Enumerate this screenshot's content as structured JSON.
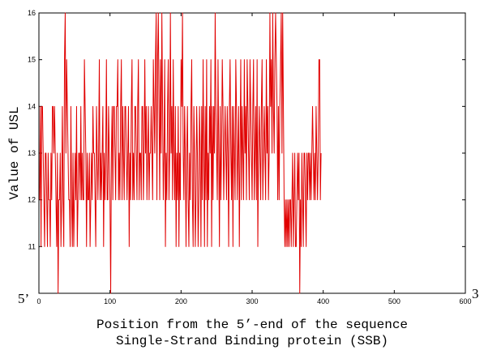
{
  "chart_data": {
    "type": "line",
    "title": "",
    "xlabel": "Position from the 5’-end of the sequence",
    "subtitle": "Single-Strand Binding protein (SSB)",
    "ylabel": "Value of USL",
    "left_end_label": "5’",
    "right_end_label": "3",
    "xlim": [
      0,
      600
    ],
    "ylim": [
      10,
      16
    ],
    "xticks": [
      0,
      100,
      200,
      300,
      400,
      500,
      600
    ],
    "yticks": [
      11,
      12,
      13,
      14,
      15,
      16
    ],
    "grid": false,
    "line_color": "#e00000",
    "series": [
      {
        "values": [
          12,
          14,
          11,
          14,
          14,
          13,
          12,
          11,
          13,
          13,
          12,
          11,
          13,
          12,
          12,
          11,
          13,
          12,
          14,
          14,
          13,
          14,
          13,
          12,
          11,
          13,
          10,
          12,
          12,
          13,
          11,
          12,
          14,
          12,
          11,
          15,
          16,
          13,
          15,
          14,
          13,
          12,
          12,
          11,
          14,
          12,
          11,
          13,
          11,
          12,
          13,
          12,
          14,
          11,
          12,
          13,
          13,
          12,
          14,
          12,
          13,
          12,
          12,
          15,
          14,
          13,
          11,
          13,
          12,
          12,
          13,
          11,
          12,
          13,
          12,
          14,
          13,
          13,
          12,
          11,
          14,
          13,
          12,
          13,
          15,
          12,
          13,
          12,
          13,
          14,
          11,
          13,
          12,
          13,
          15,
          12,
          12,
          14,
          13,
          12,
          10,
          13,
          14,
          12,
          14,
          14,
          13,
          12,
          14,
          14,
          15,
          12,
          13,
          12,
          14,
          15,
          12,
          14,
          13,
          12,
          14,
          14,
          13,
          12,
          13,
          14,
          11,
          13,
          12,
          14,
          15,
          12,
          13,
          12,
          14,
          14,
          13,
          12,
          14,
          15,
          12,
          13,
          13,
          12,
          14,
          14,
          12,
          13,
          15,
          13,
          14,
          12,
          13,
          14,
          12,
          13,
          13,
          14,
          13,
          12,
          15,
          14,
          13,
          15,
          16,
          12,
          15,
          16,
          14,
          12,
          15,
          13,
          16,
          14,
          12,
          13,
          15,
          11,
          13,
          12,
          14,
          15,
          12,
          13,
          16,
          13,
          14,
          12,
          15,
          13,
          12,
          14,
          11,
          13,
          12,
          14,
          11,
          13,
          12,
          15,
          14,
          16,
          13,
          12,
          14,
          13,
          11,
          13,
          14,
          12,
          11,
          13,
          12,
          14,
          15,
          12,
          11,
          14,
          13,
          11,
          12,
          14,
          13,
          11,
          12,
          14,
          13,
          11,
          14,
          12,
          15,
          13,
          11,
          14,
          12,
          15,
          11,
          13,
          12,
          14,
          13,
          15,
          11,
          14,
          12,
          14,
          13,
          16,
          14,
          13,
          12,
          15,
          13,
          11,
          14,
          12,
          13,
          15,
          14,
          12,
          13,
          14,
          13,
          12,
          14,
          13,
          11,
          14,
          15,
          13,
          12,
          14,
          11,
          14,
          13,
          12,
          15,
          14,
          12,
          13,
          14,
          11,
          13,
          15,
          12,
          14,
          13,
          12,
          15,
          13,
          14,
          12,
          15,
          14,
          13,
          12,
          15,
          14,
          13,
          12,
          14,
          15,
          12,
          13,
          14,
          12,
          15,
          11,
          13,
          14,
          13,
          12,
          14,
          15,
          12,
          13,
          14,
          13,
          12,
          15,
          13,
          14,
          12,
          13,
          16,
          14,
          15,
          13,
          16,
          14,
          13,
          15,
          16,
          15,
          14,
          12,
          14,
          12,
          14,
          15,
          16,
          13,
          16,
          14,
          12,
          11,
          12,
          11,
          12,
          11,
          12,
          11,
          12,
          12,
          11,
          12,
          13,
          11,
          12,
          13,
          11,
          11,
          12,
          13,
          12,
          13,
          10,
          12,
          11,
          13,
          12,
          11,
          13,
          13,
          12,
          11,
          13,
          12,
          13,
          13,
          12,
          13,
          12,
          13,
          14,
          13,
          12,
          13,
          12,
          14,
          13,
          12,
          13,
          15,
          15,
          12,
          13
        ]
      }
    ]
  }
}
